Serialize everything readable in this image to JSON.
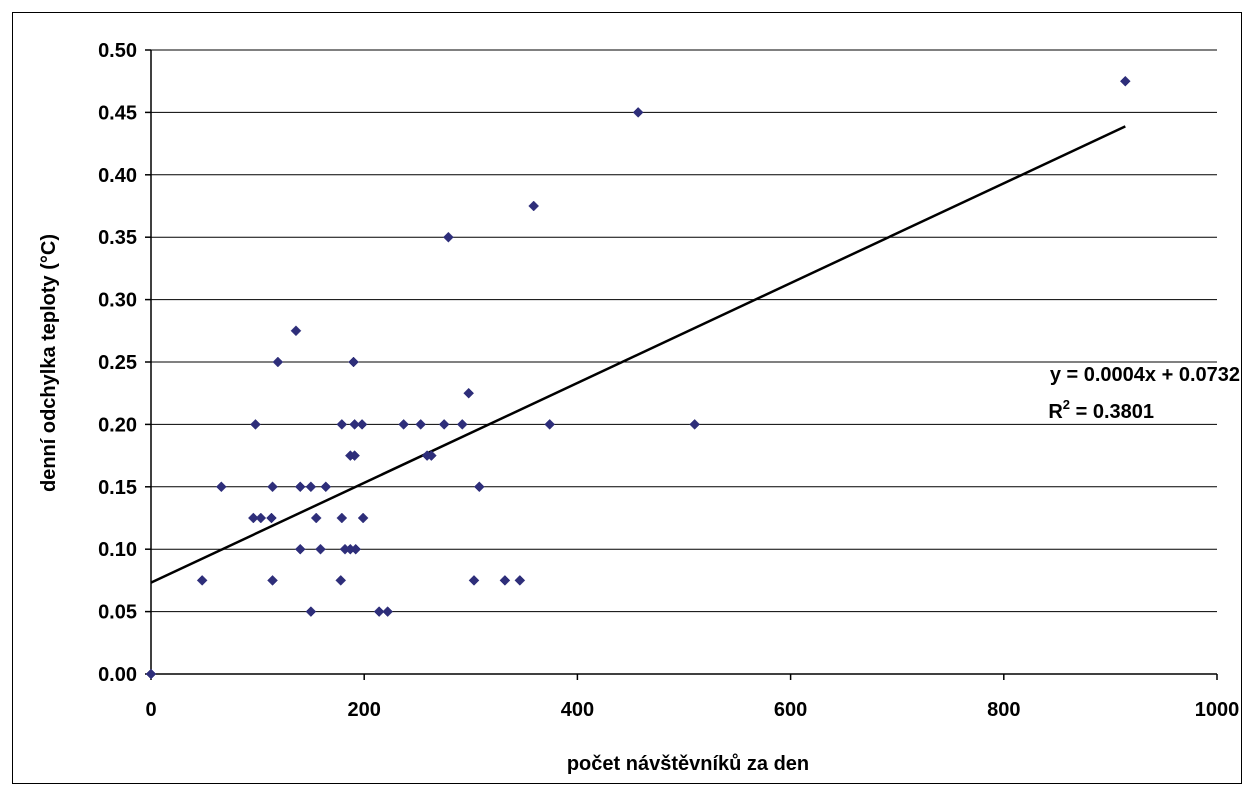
{
  "chart_data": {
    "type": "scatter",
    "xlabel": "počet návštěvníků za den",
    "ylabel": "denní odchylka teploty (°C)",
    "xlim": [
      0,
      1000
    ],
    "ylim": [
      0,
      0.5
    ],
    "x_ticks": [
      0,
      200,
      400,
      600,
      800,
      1000
    ],
    "y_ticks": [
      0.0,
      0.05,
      0.1,
      0.15,
      0.2,
      0.25,
      0.3,
      0.35,
      0.4,
      0.45,
      0.5
    ],
    "y_tick_labels": [
      "0.00",
      "0.05",
      "0.10",
      "0.15",
      "0.20",
      "0.25",
      "0.30",
      "0.35",
      "0.40",
      "0.45",
      "0.50"
    ],
    "x_tick_labels": [
      "0",
      "200",
      "400",
      "600",
      "800",
      "1000"
    ],
    "grid": "horizontal",
    "marker_color": "#2e2e7a",
    "points": [
      [
        0,
        0.0
      ],
      [
        48,
        0.075
      ],
      [
        66,
        0.15
      ],
      [
        96,
        0.125
      ],
      [
        98,
        0.2
      ],
      [
        103,
        0.125
      ],
      [
        113,
        0.125
      ],
      [
        114,
        0.15
      ],
      [
        114,
        0.075
      ],
      [
        119,
        0.25
      ],
      [
        136,
        0.275
      ],
      [
        140,
        0.15
      ],
      [
        140,
        0.1
      ],
      [
        150,
        0.05
      ],
      [
        150,
        0.15
      ],
      [
        155,
        0.125
      ],
      [
        159,
        0.1
      ],
      [
        164,
        0.15
      ],
      [
        178,
        0.075
      ],
      [
        179,
        0.2
      ],
      [
        179,
        0.125
      ],
      [
        182,
        0.1
      ],
      [
        187,
        0.175
      ],
      [
        187,
        0.1
      ],
      [
        190,
        0.25
      ],
      [
        191,
        0.175
      ],
      [
        191,
        0.2
      ],
      [
        192,
        0.1
      ],
      [
        198,
        0.2
      ],
      [
        199,
        0.125
      ],
      [
        214,
        0.05
      ],
      [
        222,
        0.05
      ],
      [
        237,
        0.2
      ],
      [
        253,
        0.2
      ],
      [
        259,
        0.175
      ],
      [
        263,
        0.175
      ],
      [
        275,
        0.2
      ],
      [
        279,
        0.35
      ],
      [
        292,
        0.2
      ],
      [
        298,
        0.225
      ],
      [
        303,
        0.075
      ],
      [
        308,
        0.15
      ],
      [
        332,
        0.075
      ],
      [
        346,
        0.075
      ],
      [
        359,
        0.375
      ],
      [
        374,
        0.2
      ],
      [
        457,
        0.45
      ],
      [
        510,
        0.2
      ],
      [
        914,
        0.475
      ]
    ],
    "trendline": {
      "type": "linear",
      "x_range": [
        0,
        914
      ],
      "slope": 0.0004,
      "intercept": 0.0732
    },
    "annotations": {
      "equation": "y = 0.0004x + 0.0732",
      "r2_label": "R",
      "r2_sup": "2",
      "r2_value": " = 0.3801"
    }
  }
}
